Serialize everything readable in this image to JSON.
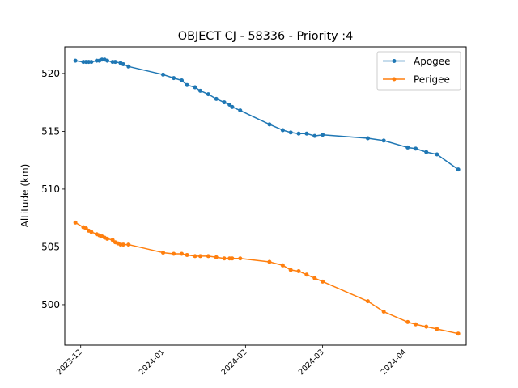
{
  "chart_data": {
    "type": "line",
    "title": "OBJECT CJ - 58336 - Priority :4",
    "xlabel": "",
    "ylabel": "Altitude (km)",
    "x_ticks": [
      "2023-12",
      "2024-01",
      "2024-02",
      "2024-03",
      "2024-04"
    ],
    "y_ticks": [
      500,
      505,
      510,
      515,
      520
    ],
    "xlim": [
      "2023-11-25",
      "2024-04-24"
    ],
    "ylim": [
      496.5,
      522.3
    ],
    "grid": false,
    "legend_position": "top-right",
    "series": [
      {
        "name": "Apogee",
        "color": "#1f77b4",
        "points": [
          [
            "2023-11-29",
            521.1
          ],
          [
            "2023-12-02",
            521.0
          ],
          [
            "2023-12-03",
            521.0
          ],
          [
            "2023-12-04",
            521.0
          ],
          [
            "2023-12-05",
            521.0
          ],
          [
            "2023-12-07",
            521.1
          ],
          [
            "2023-12-08",
            521.1
          ],
          [
            "2023-12-09",
            521.2
          ],
          [
            "2023-12-10",
            521.2
          ],
          [
            "2023-12-11",
            521.1
          ],
          [
            "2023-12-13",
            521.0
          ],
          [
            "2023-12-14",
            521.0
          ],
          [
            "2023-12-16",
            520.9
          ],
          [
            "2023-12-17",
            520.8
          ],
          [
            "2023-12-19",
            520.6
          ],
          [
            "2024-01-01",
            519.9
          ],
          [
            "2024-01-05",
            519.6
          ],
          [
            "2024-01-08",
            519.4
          ],
          [
            "2024-01-10",
            519.0
          ],
          [
            "2024-01-13",
            518.8
          ],
          [
            "2024-01-15",
            518.5
          ],
          [
            "2024-01-18",
            518.2
          ],
          [
            "2024-01-21",
            517.8
          ],
          [
            "2024-01-24",
            517.5
          ],
          [
            "2024-01-26",
            517.3
          ],
          [
            "2024-01-27",
            517.1
          ],
          [
            "2024-01-30",
            516.8
          ],
          [
            "2024-02-10",
            515.6
          ],
          [
            "2024-02-15",
            515.1
          ],
          [
            "2024-02-18",
            514.9
          ],
          [
            "2024-02-21",
            514.8
          ],
          [
            "2024-02-24",
            514.8
          ],
          [
            "2024-02-27",
            514.6
          ],
          [
            "2024-03-01",
            514.7
          ],
          [
            "2024-03-18",
            514.4
          ],
          [
            "2024-03-24",
            514.2
          ],
          [
            "2024-04-02",
            513.6
          ],
          [
            "2024-04-05",
            513.5
          ],
          [
            "2024-04-09",
            513.2
          ],
          [
            "2024-04-13",
            513.0
          ],
          [
            "2024-04-21",
            511.7
          ]
        ]
      },
      {
        "name": "Perigee",
        "color": "#ff7f0e",
        "points": [
          [
            "2023-11-29",
            507.1
          ],
          [
            "2023-12-02",
            506.7
          ],
          [
            "2023-12-03",
            506.6
          ],
          [
            "2023-12-04",
            506.4
          ],
          [
            "2023-12-05",
            506.3
          ],
          [
            "2023-12-07",
            506.1
          ],
          [
            "2023-12-08",
            506.0
          ],
          [
            "2023-12-09",
            505.9
          ],
          [
            "2023-12-10",
            505.8
          ],
          [
            "2023-12-11",
            505.7
          ],
          [
            "2023-12-13",
            505.6
          ],
          [
            "2023-12-14",
            505.4
          ],
          [
            "2023-12-15",
            505.3
          ],
          [
            "2023-12-16",
            505.2
          ],
          [
            "2023-12-17",
            505.2
          ],
          [
            "2023-12-19",
            505.2
          ],
          [
            "2024-01-01",
            504.5
          ],
          [
            "2024-01-05",
            504.4
          ],
          [
            "2024-01-08",
            504.4
          ],
          [
            "2024-01-10",
            504.3
          ],
          [
            "2024-01-13",
            504.2
          ],
          [
            "2024-01-15",
            504.2
          ],
          [
            "2024-01-18",
            504.2
          ],
          [
            "2024-01-21",
            504.1
          ],
          [
            "2024-01-24",
            504.0
          ],
          [
            "2024-01-26",
            504.0
          ],
          [
            "2024-01-27",
            504.0
          ],
          [
            "2024-01-30",
            504.0
          ],
          [
            "2024-02-10",
            503.7
          ],
          [
            "2024-02-15",
            503.4
          ],
          [
            "2024-02-18",
            503.0
          ],
          [
            "2024-02-21",
            502.9
          ],
          [
            "2024-02-24",
            502.6
          ],
          [
            "2024-02-27",
            502.3
          ],
          [
            "2024-03-01",
            502.0
          ],
          [
            "2024-03-18",
            500.3
          ],
          [
            "2024-03-24",
            499.4
          ],
          [
            "2024-04-02",
            498.5
          ],
          [
            "2024-04-05",
            498.3
          ],
          [
            "2024-04-09",
            498.1
          ],
          [
            "2024-04-13",
            497.9
          ],
          [
            "2024-04-21",
            497.5
          ]
        ]
      }
    ]
  }
}
